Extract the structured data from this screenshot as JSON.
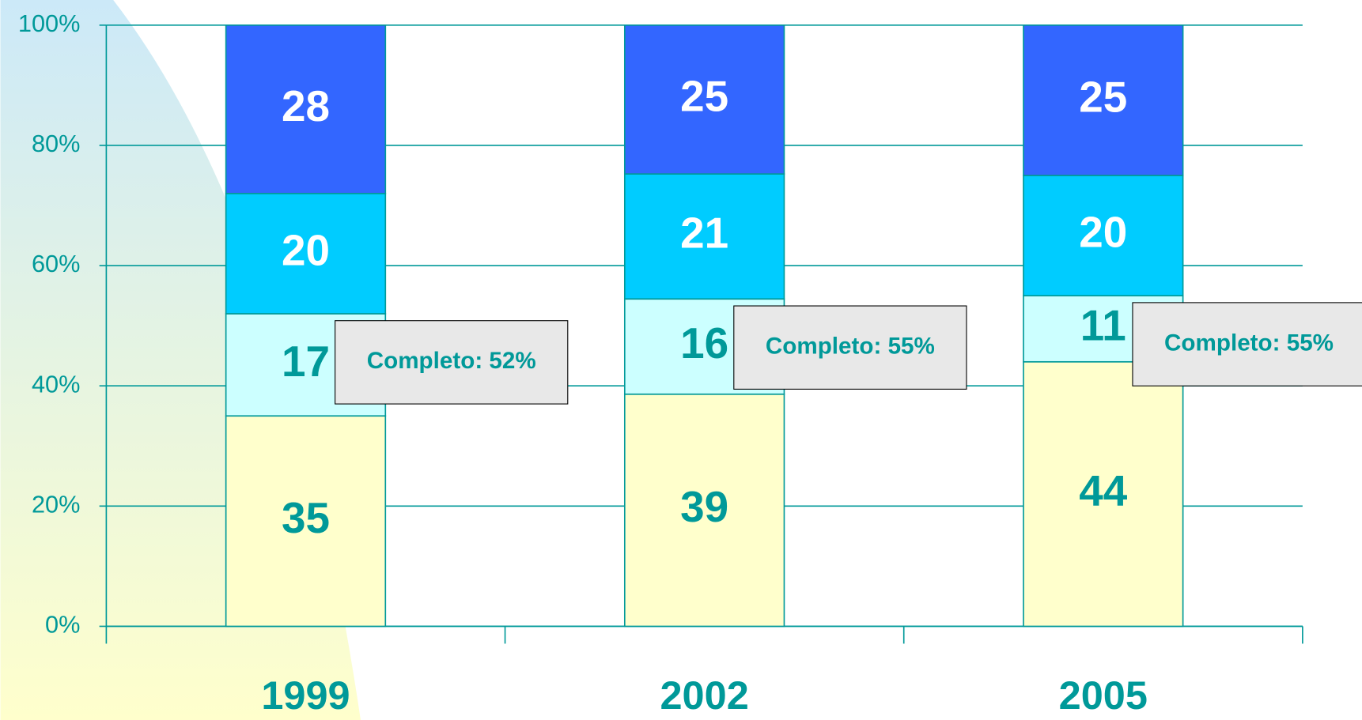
{
  "chart_data": {
    "type": "bar",
    "stacked": "percent",
    "categories": [
      "1999",
      "2002",
      "2005"
    ],
    "series": [
      {
        "color": "#ffffcc",
        "label_color": "#009999",
        "values": [
          35,
          39,
          44
        ]
      },
      {
        "color": "#ccffff",
        "label_color": "#009999",
        "values": [
          17,
          16,
          11
        ]
      },
      {
        "color": "#00ccff",
        "label_color": "#ffffff",
        "values": [
          20,
          21,
          20
        ]
      },
      {
        "color": "#3366ff",
        "label_color": "#ffffff",
        "values": [
          28,
          25,
          25
        ]
      }
    ],
    "annotations": [
      "Completo: 52%",
      "Completo: 55%",
      "Completo: 55%"
    ],
    "ylim": [
      0,
      100
    ],
    "yticks": [
      {
        "value": 0,
        "label": "0%"
      },
      {
        "value": 20,
        "label": "20%"
      },
      {
        "value": 40,
        "label": "40%"
      },
      {
        "value": 60,
        "label": "60%"
      },
      {
        "value": 80,
        "label": "80%"
      },
      {
        "value": 100,
        "label": "100%"
      }
    ],
    "grid": true,
    "axis_color": "#009999"
  }
}
